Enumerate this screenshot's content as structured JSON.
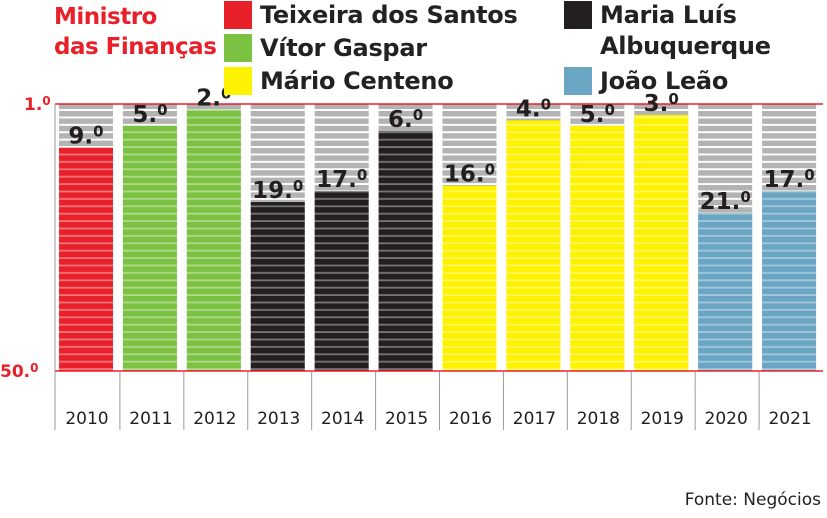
{
  "legend": {
    "title_line1": "Ministro",
    "title_line2": "das Finanças",
    "items": [
      {
        "name": "Teixeira dos Santos",
        "color": "#e8202a"
      },
      {
        "name": "Vítor Gaspar",
        "color": "#7cc242"
      },
      {
        "name": "Mário Centeno",
        "color": "#fff200"
      },
      {
        "name": "Maria Luís Albuquerque",
        "line1": "Maria Luís",
        "line2": "Albuquerque",
        "color": "#231f20"
      },
      {
        "name": "João Leão",
        "color": "#6ba5c4"
      }
    ]
  },
  "source": "Fonte: Negócios",
  "chart_data": {
    "type": "bar",
    "title": "",
    "xlabel": "",
    "ylabel": "",
    "ylim": [
      1.0,
      50.0
    ],
    "y_axis_inverted": true,
    "y_tick_labels": [
      "1.0",
      "50.0"
    ],
    "y_ticks": [
      1.0,
      50.0
    ],
    "categories": [
      "2010",
      "2011",
      "2012",
      "2013",
      "2014",
      "2015",
      "2016",
      "2017",
      "2018",
      "2019",
      "2020",
      "2021"
    ],
    "values": [
      9.0,
      5.0,
      2.0,
      19.0,
      17.0,
      6.0,
      16.0,
      4.0,
      5.0,
      3.0,
      21.0,
      17.0
    ],
    "value_labels": [
      "9.0",
      "5.0",
      "2.0",
      "19.0",
      "17.0",
      "6.0",
      "16.0",
      "4.0",
      "5.0",
      "3.0",
      "21.0",
      "17.0"
    ],
    "minister": [
      "Teixeira dos Santos",
      "Vítor Gaspar",
      "Vítor Gaspar",
      "Maria Luís Albuquerque",
      "Maria Luís Albuquerque",
      "Maria Luís Albuquerque",
      "Mário Centeno",
      "Mário Centeno",
      "Mário Centeno",
      "Mário Centeno",
      "João Leão",
      "João Leão"
    ],
    "colors": [
      "#e8202a",
      "#7cc242",
      "#7cc242",
      "#231f20",
      "#231f20",
      "#231f20",
      "#fff200",
      "#fff200",
      "#fff200",
      "#fff200",
      "#6ba5c4",
      "#6ba5c4"
    ],
    "background_bar_color": "#b3b3b3",
    "axis_color": "#e8202a"
  }
}
